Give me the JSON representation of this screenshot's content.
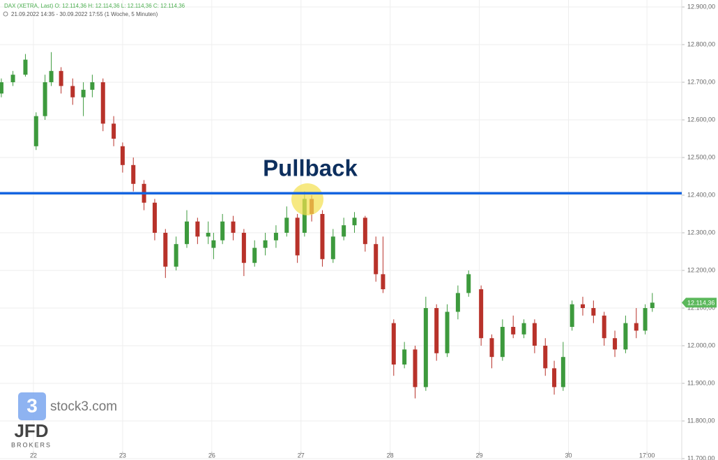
{
  "chart_data": {
    "type": "candlestick",
    "header": "DAX (XETRA, Last)  O: 12.114,36  H: 12.114,36  L: 12.114,36  C: 12.114,36",
    "subheader": "21.09.2022 14:35 - 30.09.2022 17:55  (1 Woche, 5 Minuten)",
    "annotation": "Pullback",
    "watermark": {
      "brand": "stock3.com",
      "logo": "JFD",
      "logo_sub": "BROKERS"
    },
    "up_color": "#3d9a3d",
    "down_color": "#b8322a",
    "grid": true,
    "xlim": [
      -0.375,
      7.27
    ],
    "xticks": [
      {
        "value": 0,
        "label": "22"
      },
      {
        "value": 1,
        "label": "23"
      },
      {
        "value": 2,
        "label": "26"
      },
      {
        "value": 3,
        "label": "27"
      },
      {
        "value": 4,
        "label": "28"
      },
      {
        "value": 5,
        "label": "29"
      },
      {
        "value": 6,
        "label": "30"
      },
      {
        "value": 6.88,
        "label": "17:00"
      }
    ],
    "ylim": [
      11700,
      12900
    ],
    "yticks": [
      {
        "value": 11700,
        "label": "11.700,00"
      },
      {
        "value": 11800,
        "label": "11.800,00"
      },
      {
        "value": 11900,
        "label": "11.900,00"
      },
      {
        "value": 12000,
        "label": "12.000,00"
      },
      {
        "value": 12100,
        "label": "12.100,00"
      },
      {
        "value": 12200,
        "label": "12.200,00"
      },
      {
        "value": 12300,
        "label": "12.300,00"
      },
      {
        "value": 12400,
        "label": "12.400,00"
      },
      {
        "value": 12500,
        "label": "12.500,00"
      },
      {
        "value": 12600,
        "label": "12.600,00"
      },
      {
        "value": 12700,
        "label": "12.700,00"
      },
      {
        "value": 12800,
        "label": "12.800,00"
      },
      {
        "value": 12900,
        "label": "12.900,00"
      }
    ],
    "hline": {
      "value": 12405,
      "color": "#1565e0"
    },
    "last_price": {
      "value": 12114.36,
      "label": "12.114,36",
      "color": "#5cb85c"
    },
    "x": [
      -0.36,
      -0.23,
      -0.09,
      0.03,
      0.13,
      0.2,
      0.31,
      0.44,
      0.56,
      0.66,
      0.78,
      0.9,
      1.0,
      1.12,
      1.24,
      1.36,
      1.48,
      1.6,
      1.72,
      1.84,
      1.96,
      2.02,
      2.12,
      2.24,
      2.36,
      2.48,
      2.6,
      2.72,
      2.84,
      2.96,
      3.04,
      3.12,
      3.24,
      3.36,
      3.48,
      3.6,
      3.72,
      3.84,
      3.92,
      4.04,
      4.16,
      4.28,
      4.4,
      4.52,
      4.64,
      4.76,
      4.88,
      5.02,
      5.14,
      5.26,
      5.38,
      5.5,
      5.62,
      5.74,
      5.84,
      5.94,
      6.04,
      6.16,
      6.28,
      6.4,
      6.52,
      6.64,
      6.76,
      6.86,
      6.94
    ],
    "open": [
      12670,
      12700,
      12720,
      12530,
      12610,
      12700,
      12730,
      12690,
      12660,
      12680,
      12700,
      12590,
      12530,
      12480,
      12430,
      12380,
      12300,
      12210,
      12270,
      12330,
      12290,
      12260,
      12280,
      12330,
      12300,
      12220,
      12260,
      12280,
      12300,
      12340,
      12300,
      12390,
      12350,
      12230,
      12290,
      12320,
      12340,
      12270,
      12190,
      12060,
      11950,
      11990,
      11890,
      12100,
      11980,
      12090,
      12140,
      12150,
      12020,
      11970,
      12050,
      12030,
      12060,
      12000,
      11940,
      11890,
      12050,
      12110,
      12100,
      12080,
      12020,
      11990,
      12060,
      12040,
      12100
    ],
    "high": [
      12710,
      12730,
      12775,
      12620,
      12720,
      12780,
      12740,
      12710,
      12700,
      12720,
      12710,
      12610,
      12540,
      12500,
      12440,
      12390,
      12310,
      12290,
      12360,
      12340,
      12330,
      12300,
      12350,
      12345,
      12310,
      12280,
      12300,
      12320,
      12370,
      12350,
      12410,
      12400,
      12360,
      12310,
      12340,
      12355,
      12345,
      12290,
      12290,
      12070,
      12010,
      12000,
      12130,
      12110,
      12110,
      12160,
      12200,
      12160,
      12030,
      12070,
      12080,
      12070,
      12070,
      12020,
      11960,
      12010,
      12120,
      12130,
      12120,
      12090,
      12040,
      12080,
      12100,
      12110,
      12140
    ],
    "low": [
      12660,
      12690,
      12715,
      12520,
      12600,
      12690,
      12670,
      12640,
      12610,
      12660,
      12570,
      12530,
      12460,
      12410,
      12360,
      12280,
      12180,
      12200,
      12260,
      12270,
      12270,
      12230,
      12270,
      12280,
      12185,
      12210,
      12240,
      12260,
      12290,
      12220,
      12290,
      12330,
      12210,
      12220,
      12280,
      12300,
      12250,
      12170,
      12140,
      11920,
      11940,
      11860,
      11880,
      11960,
      11970,
      12070,
      12130,
      12000,
      11940,
      11960,
      12020,
      12020,
      11980,
      11920,
      11870,
      11880,
      12040,
      12080,
      12060,
      12000,
      11970,
      11980,
      12020,
      12030,
      12090
    ],
    "close": [
      12700,
      12720,
      12760,
      12610,
      12700,
      12730,
      12690,
      12660,
      12680,
      12700,
      12590,
      12550,
      12480,
      12430,
      12380,
      12300,
      12210,
      12270,
      12330,
      12290,
      12300,
      12280,
      12330,
      12300,
      12220,
      12260,
      12280,
      12300,
      12340,
      12240,
      12390,
      12350,
      12230,
      12290,
      12320,
      12340,
      12270,
      12190,
      12150,
      11950,
      11990,
      11890,
      12100,
      11980,
      12090,
      12140,
      12190,
      12020,
      11970,
      12050,
      12030,
      12060,
      12000,
      11940,
      11890,
      11970,
      12110,
      12100,
      12080,
      12020,
      11990,
      12060,
      12040,
      12100,
      12114.36
    ]
  }
}
